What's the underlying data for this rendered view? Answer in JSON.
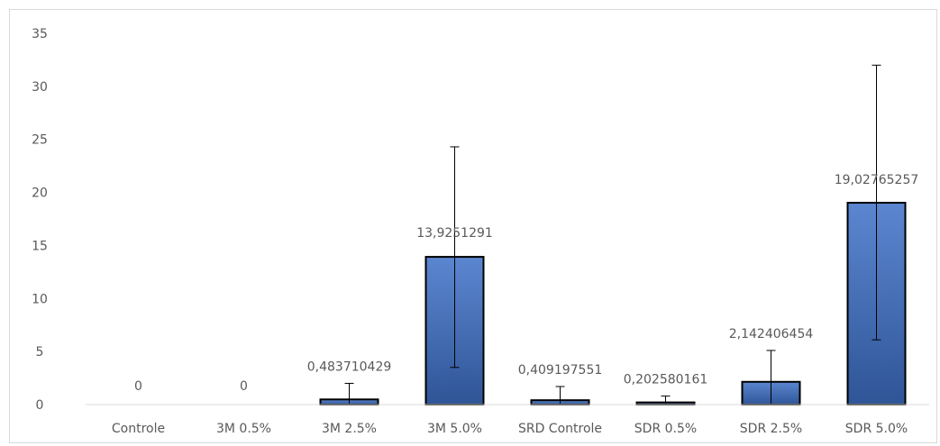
{
  "chart_data": {
    "type": "bar",
    "categories": [
      "Controle",
      "3M 0.5%",
      "3M 2.5%",
      "3M 5.0%",
      "SRD Controle",
      "SDR 0.5%",
      "SDR 2.5%",
      "SDR 5.0%"
    ],
    "values": [
      0,
      0,
      0.483710429,
      13.9251291,
      0.409197551,
      0.202580161,
      2.142406454,
      19.02765257
    ],
    "data_labels": [
      "0",
      "0",
      "0,483710429",
      "13,9251291",
      "0,409197551",
      "0,202580161",
      "2,142406454",
      "19,02765257"
    ],
    "error_bars": [
      null,
      null,
      [
        0,
        2.0
      ],
      [
        3.5,
        24.3
      ],
      [
        0,
        1.7
      ],
      [
        0,
        0.8
      ],
      [
        0,
        5.1
      ],
      [
        6.1,
        32.0
      ]
    ],
    "yticks": [
      "0",
      "5",
      "10",
      "15",
      "20",
      "25",
      "30",
      "35"
    ],
    "ylim": [
      0,
      35
    ],
    "title": "",
    "xlabel": "",
    "ylabel": "",
    "grid": false,
    "legend": "none",
    "bar_color": "#4472c4",
    "bar_color_dark": "#2f5597",
    "bar_edge_color": "#000000",
    "error_bar_color": "#000000"
  }
}
